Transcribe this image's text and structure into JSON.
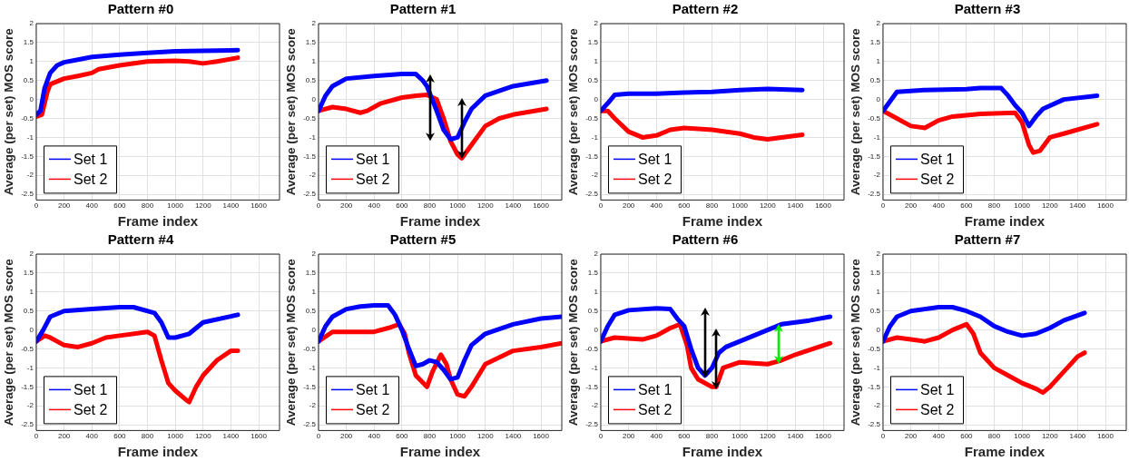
{
  "chart_data": [
    {
      "type": "line",
      "title": "Pattern #0",
      "xlabel": "Frame index",
      "ylabel": "Average (per set) MOS score",
      "xlim": [
        0,
        1750
      ],
      "ylim": [
        -2.65,
        2
      ],
      "xticks": [
        0,
        200,
        400,
        600,
        800,
        1000,
        1200,
        1400,
        1600
      ],
      "yticks": [
        -2.5,
        -2,
        -1.5,
        -1,
        -0.5,
        0,
        0.5,
        1,
        1.5,
        2
      ],
      "grid": true,
      "legend": "bottom left",
      "marker": "none",
      "series": [
        {
          "name": "Set 1",
          "color": "#0000ff",
          "x": [
            0,
            30,
            60,
            100,
            150,
            200,
            300,
            400,
            600,
            800,
            1000,
            1200,
            1450
          ],
          "values": [
            -0.4,
            -0.3,
            0.3,
            0.7,
            0.9,
            0.98,
            1.05,
            1.12,
            1.18,
            1.23,
            1.27,
            1.28,
            1.3
          ]
        },
        {
          "name": "Set 2",
          "color": "#ff0000",
          "x": [
            0,
            40,
            80,
            100,
            200,
            300,
            400,
            450,
            600,
            800,
            1000,
            1100,
            1200,
            1300,
            1450
          ],
          "values": [
            -0.45,
            -0.4,
            0.2,
            0.4,
            0.55,
            0.62,
            0.7,
            0.8,
            0.9,
            1.0,
            1.02,
            1.0,
            0.95,
            1.0,
            1.1
          ]
        }
      ]
    },
    {
      "type": "line",
      "title": "Pattern #1",
      "xlabel": "Frame index",
      "ylabel": "Average (per set) MOS score",
      "xlim": [
        0,
        1750
      ],
      "ylim": [
        -2.65,
        2
      ],
      "xticks": [
        0,
        200,
        400,
        600,
        800,
        1000,
        1200,
        1400,
        1600
      ],
      "yticks": [
        -2.5,
        -2,
        -1.5,
        -1,
        -0.5,
        0,
        0.5,
        1,
        1.5,
        2
      ],
      "grid": true,
      "legend": "bottom left",
      "marker": "none",
      "series": [
        {
          "name": "Set 1",
          "color": "#0000ff",
          "x": [
            0,
            50,
            100,
            200,
            400,
            600,
            700,
            750,
            780,
            850,
            900,
            950,
            1000,
            1050,
            1100,
            1200,
            1400,
            1640
          ],
          "values": [
            -0.3,
            0.1,
            0.35,
            0.55,
            0.62,
            0.67,
            0.67,
            0.5,
            0.35,
            -0.3,
            -0.8,
            -1.05,
            -1.0,
            -0.6,
            -0.25,
            0.1,
            0.35,
            0.5
          ]
        },
        {
          "name": "Set 2",
          "color": "#ff0000",
          "x": [
            0,
            100,
            200,
            300,
            350,
            450,
            600,
            700,
            780,
            850,
            900,
            950,
            1000,
            1030,
            1100,
            1200,
            1300,
            1400,
            1640
          ],
          "values": [
            -0.3,
            -0.2,
            -0.25,
            -0.35,
            -0.3,
            -0.1,
            0.05,
            0.1,
            0.12,
            0,
            -0.5,
            -1.1,
            -1.45,
            -1.55,
            -1.2,
            -0.7,
            -0.5,
            -0.4,
            -0.25
          ]
        }
      ]
    },
    {
      "type": "line",
      "title": "Pattern #2",
      "xlabel": "Frame index",
      "ylabel": "Average (per set) MOS score",
      "xlim": [
        0,
        1750
      ],
      "ylim": [
        -2.65,
        2
      ],
      "xticks": [
        0,
        200,
        400,
        600,
        800,
        1000,
        1200,
        1400,
        1600
      ],
      "yticks": [
        -2.5,
        -2,
        -1.5,
        -1,
        -0.5,
        0,
        0.5,
        1,
        1.5,
        2
      ],
      "grid": true,
      "legend": "bottom left",
      "marker": "none",
      "series": [
        {
          "name": "Set 1",
          "color": "#0000ff",
          "x": [
            0,
            50,
            100,
            200,
            400,
            600,
            800,
            1000,
            1200,
            1450
          ],
          "values": [
            -0.3,
            -0.1,
            0.12,
            0.15,
            0.15,
            0.18,
            0.2,
            0.25,
            0.28,
            0.25
          ]
        },
        {
          "name": "Set 2",
          "color": "#ff0000",
          "x": [
            0,
            50,
            100,
            200,
            300,
            400,
            500,
            600,
            800,
            1000,
            1100,
            1200,
            1300,
            1450
          ],
          "values": [
            -0.3,
            -0.3,
            -0.5,
            -0.85,
            -1.0,
            -0.95,
            -0.8,
            -0.75,
            -0.8,
            -0.9,
            -1.0,
            -1.05,
            -1.0,
            -0.93
          ]
        }
      ]
    },
    {
      "type": "line",
      "title": "Pattern #3",
      "xlabel": "Frame index",
      "ylabel": "Average (per set) MOS score",
      "xlim": [
        0,
        1750
      ],
      "ylim": [
        -2.65,
        2
      ],
      "xticks": [
        0,
        200,
        400,
        600,
        800,
        1000,
        1200,
        1400,
        1600
      ],
      "yticks": [
        -2.5,
        -2,
        -1.5,
        -1,
        -0.5,
        0,
        0.5,
        1,
        1.5,
        2
      ],
      "grid": true,
      "legend": "bottom left",
      "marker": "none",
      "series": [
        {
          "name": "Set 1",
          "color": "#0000ff",
          "x": [
            0,
            50,
            100,
            300,
            600,
            700,
            850,
            900,
            950,
            1000,
            1050,
            1100,
            1150,
            1300,
            1540
          ],
          "values": [
            -0.3,
            -0.05,
            0.2,
            0.25,
            0.27,
            0.3,
            0.3,
            0.1,
            -0.15,
            -0.35,
            -0.7,
            -0.45,
            -0.25,
            0,
            0.1
          ]
        },
        {
          "name": "Set 2",
          "color": "#ff0000",
          "x": [
            0,
            100,
            200,
            300,
            400,
            500,
            700,
            950,
            1000,
            1050,
            1080,
            1130,
            1200,
            1300,
            1540
          ],
          "values": [
            -0.3,
            -0.5,
            -0.7,
            -0.75,
            -0.55,
            -0.45,
            -0.38,
            -0.35,
            -0.6,
            -1.2,
            -1.4,
            -1.35,
            -1.0,
            -0.9,
            -0.65
          ]
        }
      ]
    },
    {
      "type": "line",
      "title": "Pattern #4",
      "xlabel": "Frame index",
      "ylabel": "Average (per set) MOS score",
      "xlim": [
        0,
        1750
      ],
      "ylim": [
        -2.65,
        2
      ],
      "xticks": [
        0,
        200,
        400,
        600,
        800,
        1000,
        1200,
        1400,
        1600
      ],
      "yticks": [
        -2.5,
        -2,
        -1.5,
        -1,
        -0.5,
        0,
        0.5,
        1,
        1.5,
        2
      ],
      "grid": true,
      "legend": "bottom left",
      "marker": "none",
      "series": [
        {
          "name": "Set 1",
          "color": "#0000ff",
          "x": [
            0,
            50,
            100,
            200,
            400,
            600,
            700,
            850,
            900,
            950,
            1000,
            1100,
            1200,
            1450
          ],
          "values": [
            -0.3,
            0,
            0.35,
            0.5,
            0.55,
            0.6,
            0.6,
            0.45,
            0.2,
            -0.2,
            -0.2,
            -0.1,
            0.2,
            0.4
          ]
        },
        {
          "name": "Set 2",
          "color": "#ff0000",
          "x": [
            0,
            60,
            100,
            200,
            300,
            400,
            500,
            600,
            800,
            850,
            900,
            950,
            1000,
            1080,
            1100,
            1150,
            1200,
            1300,
            1400,
            1450
          ],
          "values": [
            -0.3,
            -0.15,
            -0.2,
            -0.4,
            -0.45,
            -0.35,
            -0.2,
            -0.15,
            -0.05,
            -0.15,
            -0.8,
            -1.4,
            -1.6,
            -1.85,
            -1.9,
            -1.5,
            -1.2,
            -0.8,
            -0.55,
            -0.55
          ]
        }
      ]
    },
    {
      "type": "line",
      "title": "Pattern #5",
      "xlabel": "Frame index",
      "ylabel": "Average (per set) MOS score",
      "xlim": [
        0,
        1750
      ],
      "ylim": [
        -2.65,
        2
      ],
      "xticks": [
        0,
        200,
        400,
        600,
        800,
        1000,
        1200,
        1400,
        1600
      ],
      "yticks": [
        -2.5,
        -2,
        -1.5,
        -1,
        -0.5,
        0,
        0.5,
        1,
        1.5,
        2
      ],
      "grid": true,
      "legend": "bottom left",
      "marker": "none",
      "series": [
        {
          "name": "Set 1",
          "color": "#0000ff",
          "x": [
            0,
            50,
            100,
            200,
            300,
            400,
            500,
            550,
            600,
            650,
            700,
            750,
            800,
            850,
            900,
            950,
            1000,
            1050,
            1100,
            1200,
            1400,
            1600,
            1750
          ],
          "values": [
            -0.3,
            0.1,
            0.35,
            0.55,
            0.62,
            0.65,
            0.65,
            0.4,
            0.0,
            -0.5,
            -0.95,
            -0.9,
            -0.8,
            -0.85,
            -1.05,
            -1.3,
            -1.25,
            -0.8,
            -0.4,
            -0.1,
            0.15,
            0.3,
            0.35
          ]
        },
        {
          "name": "Set 2",
          "color": "#ff0000",
          "x": [
            0,
            100,
            200,
            400,
            500,
            580,
            620,
            650,
            700,
            780,
            820,
            880,
            920,
            950,
            1000,
            1050,
            1100,
            1200,
            1400,
            1600,
            1750
          ],
          "values": [
            -0.3,
            -0.05,
            -0.05,
            -0.05,
            0.05,
            0.15,
            -0.1,
            -0.6,
            -1.2,
            -1.5,
            -1.1,
            -0.65,
            -0.9,
            -1.3,
            -1.7,
            -1.75,
            -1.5,
            -0.9,
            -0.55,
            -0.45,
            -0.35
          ]
        }
      ]
    },
    {
      "type": "line",
      "title": "Pattern #6",
      "xlabel": "Frame index",
      "ylabel": "Average (per set) MOS score",
      "xlim": [
        0,
        1750
      ],
      "ylim": [
        -2.65,
        2
      ],
      "xticks": [
        0,
        200,
        400,
        600,
        800,
        1000,
        1200,
        1400,
        1600
      ],
      "yticks": [
        -2.5,
        -2,
        -1.5,
        -1,
        -0.5,
        0,
        0.5,
        1,
        1.5,
        2
      ],
      "grid": true,
      "legend": "bottom left",
      "marker": "none",
      "series": [
        {
          "name": "Set 1",
          "color": "#0000ff",
          "x": [
            0,
            50,
            100,
            200,
            400,
            500,
            550,
            600,
            650,
            700,
            750,
            800,
            850,
            900,
            1000,
            1100,
            1200,
            1300,
            1500,
            1650
          ],
          "values": [
            -0.3,
            0.1,
            0.4,
            0.52,
            0.57,
            0.55,
            0.3,
            0.1,
            -0.5,
            -1.0,
            -1.2,
            -1.0,
            -0.6,
            -0.45,
            -0.3,
            -0.15,
            0.0,
            0.15,
            0.25,
            0.35
          ]
        },
        {
          "name": "Set 2",
          "color": "#ff0000",
          "x": [
            0,
            100,
            300,
            400,
            500,
            570,
            620,
            650,
            700,
            800,
            830,
            880,
            1000,
            1200,
            1300,
            1400,
            1650
          ],
          "values": [
            -0.3,
            -0.2,
            -0.25,
            -0.15,
            0.05,
            0.15,
            -0.4,
            -1.0,
            -1.3,
            -1.5,
            -1.5,
            -1.0,
            -0.85,
            -0.9,
            -0.8,
            -0.65,
            -0.35
          ]
        }
      ]
    },
    {
      "type": "line",
      "title": "Pattern #7",
      "xlabel": "Frame index",
      "ylabel": "Average (per set) MOS score",
      "xlim": [
        0,
        1750
      ],
      "ylim": [
        -2.65,
        2
      ],
      "xticks": [
        0,
        200,
        400,
        600,
        800,
        1000,
        1200,
        1400,
        1600
      ],
      "yticks": [
        -2.5,
        -2,
        -1.5,
        -1,
        -0.5,
        0,
        0.5,
        1,
        1.5,
        2
      ],
      "grid": true,
      "legend": "bottom left",
      "marker": "none",
      "series": [
        {
          "name": "Set 1",
          "color": "#0000ff",
          "x": [
            0,
            50,
            100,
            200,
            400,
            500,
            600,
            700,
            800,
            900,
            1000,
            1100,
            1200,
            1300,
            1450
          ],
          "values": [
            -0.3,
            0.1,
            0.35,
            0.5,
            0.6,
            0.6,
            0.5,
            0.35,
            0.1,
            -0.05,
            -0.15,
            -0.1,
            0.05,
            0.25,
            0.45
          ]
        },
        {
          "name": "Set 2",
          "color": "#ff0000",
          "x": [
            0,
            100,
            200,
            300,
            400,
            500,
            600,
            650,
            700,
            800,
            900,
            1000,
            1100,
            1150,
            1200,
            1300,
            1400,
            1450
          ],
          "values": [
            -0.3,
            -0.2,
            -0.25,
            -0.3,
            -0.2,
            0.0,
            0.15,
            -0.1,
            -0.6,
            -1.0,
            -1.2,
            -1.4,
            -1.55,
            -1.65,
            -1.5,
            -1.1,
            -0.7,
            -0.6
          ]
        }
      ]
    }
  ]
}
